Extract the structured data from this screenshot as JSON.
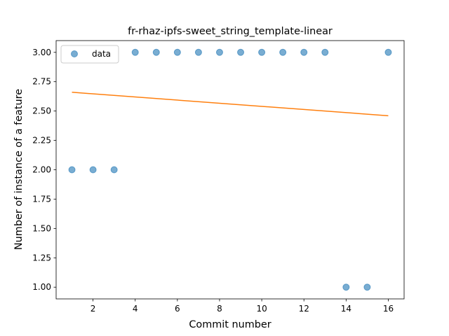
{
  "chart_data": {
    "type": "scatter",
    "title": "fr-rhaz-ipfs-sweet_string_template-linear",
    "xlabel": "Commit number",
    "ylabel": "Number of instance of a feature",
    "xlim": [
      0.25,
      16.75
    ],
    "ylim": [
      0.9,
      3.1
    ],
    "xticks": [
      2,
      4,
      6,
      8,
      10,
      12,
      14,
      16
    ],
    "yticks": [
      1.0,
      1.25,
      1.5,
      1.75,
      2.0,
      2.25,
      2.5,
      2.75,
      3.0
    ],
    "ytick_labels": [
      "1.00",
      "1.25",
      "1.50",
      "1.75",
      "2.00",
      "2.25",
      "2.50",
      "2.75",
      "3.00"
    ],
    "grid": false,
    "legend": {
      "placement": "top-left",
      "entries": [
        "data"
      ]
    },
    "series": [
      {
        "name": "data",
        "type": "scatter",
        "color": "#1f77b4",
        "x": [
          1,
          2,
          3,
          4,
          5,
          6,
          7,
          8,
          9,
          10,
          11,
          12,
          13,
          14,
          15,
          16
        ],
        "y": [
          2,
          2,
          2,
          3,
          3,
          3,
          3,
          3,
          3,
          3,
          3,
          3,
          3,
          1,
          1,
          3
        ]
      },
      {
        "type": "line",
        "color": "#ff7f0e",
        "x": [
          1,
          16
        ],
        "y": [
          2.66,
          2.46
        ]
      }
    ]
  }
}
